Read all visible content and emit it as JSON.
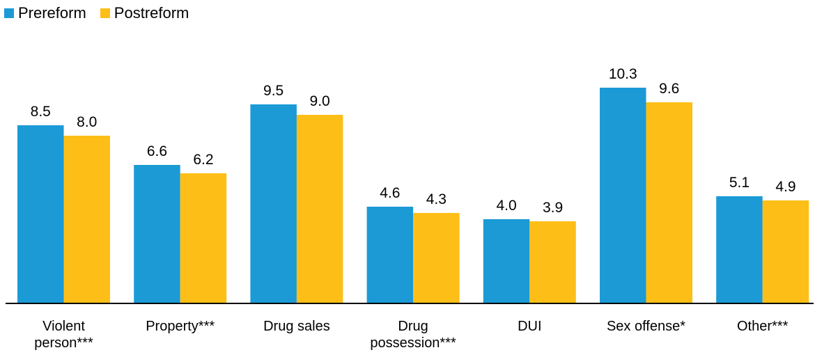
{
  "colors": {
    "prereform": "#1b9ad6",
    "postreform": "#fdbf17",
    "axis": "#000000"
  },
  "chart_data": {
    "type": "bar",
    "categories": [
      "Violent person***",
      "Property***",
      "Drug sales",
      "Drug possession***",
      "DUI",
      "Sex offense*",
      "Other***"
    ],
    "category_lines": [
      [
        "Violent",
        "person***"
      ],
      [
        "Property***"
      ],
      [
        "Drug sales"
      ],
      [
        "Drug",
        "possession***"
      ],
      [
        "DUI"
      ],
      [
        "Sex offense*"
      ],
      [
        "Other***"
      ]
    ],
    "series": [
      {
        "name": "Prereform",
        "values": [
          8.5,
          6.6,
          9.5,
          4.6,
          4.0,
          10.3,
          5.1
        ],
        "labels": [
          "8.5",
          "6.6",
          "9.5",
          "4.6",
          "4.0",
          "10.3",
          "5.1"
        ]
      },
      {
        "name": "Postreform",
        "values": [
          8.0,
          6.2,
          9.0,
          4.3,
          3.9,
          9.6,
          4.9
        ],
        "labels": [
          "8.0",
          "6.2",
          "9.0",
          "4.3",
          "3.9",
          "9.6",
          "4.9"
        ]
      }
    ],
    "title": "",
    "xlabel": "",
    "ylabel": "",
    "ylim": [
      0,
      11
    ],
    "grid": false,
    "legend_position": "top-left"
  }
}
